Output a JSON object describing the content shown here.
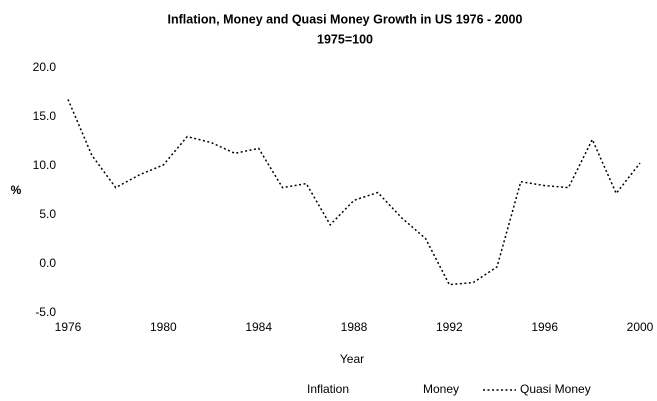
{
  "chart_data": {
    "type": "line",
    "title": "Inflation, Money  and Quasi Money Growth in US 1976 - 2000",
    "subtitle": "1975=100",
    "x_label": "Year",
    "y_label": "%",
    "x": [
      1976,
      1977,
      1978,
      1979,
      1980,
      1981,
      1982,
      1983,
      1984,
      1985,
      1986,
      1987,
      1988,
      1989,
      1990,
      1991,
      1992,
      1993,
      1994,
      1995,
      1996,
      1997,
      1998,
      1999,
      2000
    ],
    "series": [
      {
        "name": "Inflation",
        "color": "#ffffff",
        "values": [
          null,
          null,
          null,
          null,
          null,
          null,
          null,
          null,
          null,
          null,
          null,
          null,
          null,
          null,
          null,
          null,
          null,
          null,
          null,
          null,
          null,
          null,
          null,
          null,
          null
        ]
      },
      {
        "name": "Money",
        "color": "#ffffff",
        "values": [
          null,
          null,
          null,
          null,
          null,
          null,
          null,
          null,
          null,
          null,
          null,
          null,
          null,
          null,
          null,
          null,
          null,
          null,
          null,
          null,
          null,
          null,
          null,
          null,
          null
        ]
      },
      {
        "name": "Quasi Money",
        "color": "#000000",
        "dashed": true,
        "values": [
          16.8,
          11.1,
          7.8,
          9.1,
          10.1,
          13.0,
          12.4,
          11.3,
          11.8,
          7.8,
          8.2,
          4.0,
          6.5,
          7.3,
          4.7,
          2.6,
          -2.1,
          -1.9,
          -0.3,
          8.4,
          8.0,
          7.8,
          12.7,
          7.2,
          10.3
        ]
      }
    ],
    "xlim": [
      1976,
      2000
    ],
    "xticks": [
      1976,
      1980,
      1984,
      1988,
      1992,
      1996,
      2000
    ],
    "ylim": [
      -5,
      20
    ],
    "yticks": [
      {
        "value": -5,
        "label": "-5.0"
      },
      {
        "value": 0,
        "label": "0.0"
      },
      {
        "value": 5,
        "label": "5.0"
      },
      {
        "value": 10,
        "label": "10.0"
      },
      {
        "value": 15,
        "label": "15.0"
      },
      {
        "value": 20,
        "label": "20.0"
      }
    ],
    "legend": "bottom",
    "grid": false
  }
}
